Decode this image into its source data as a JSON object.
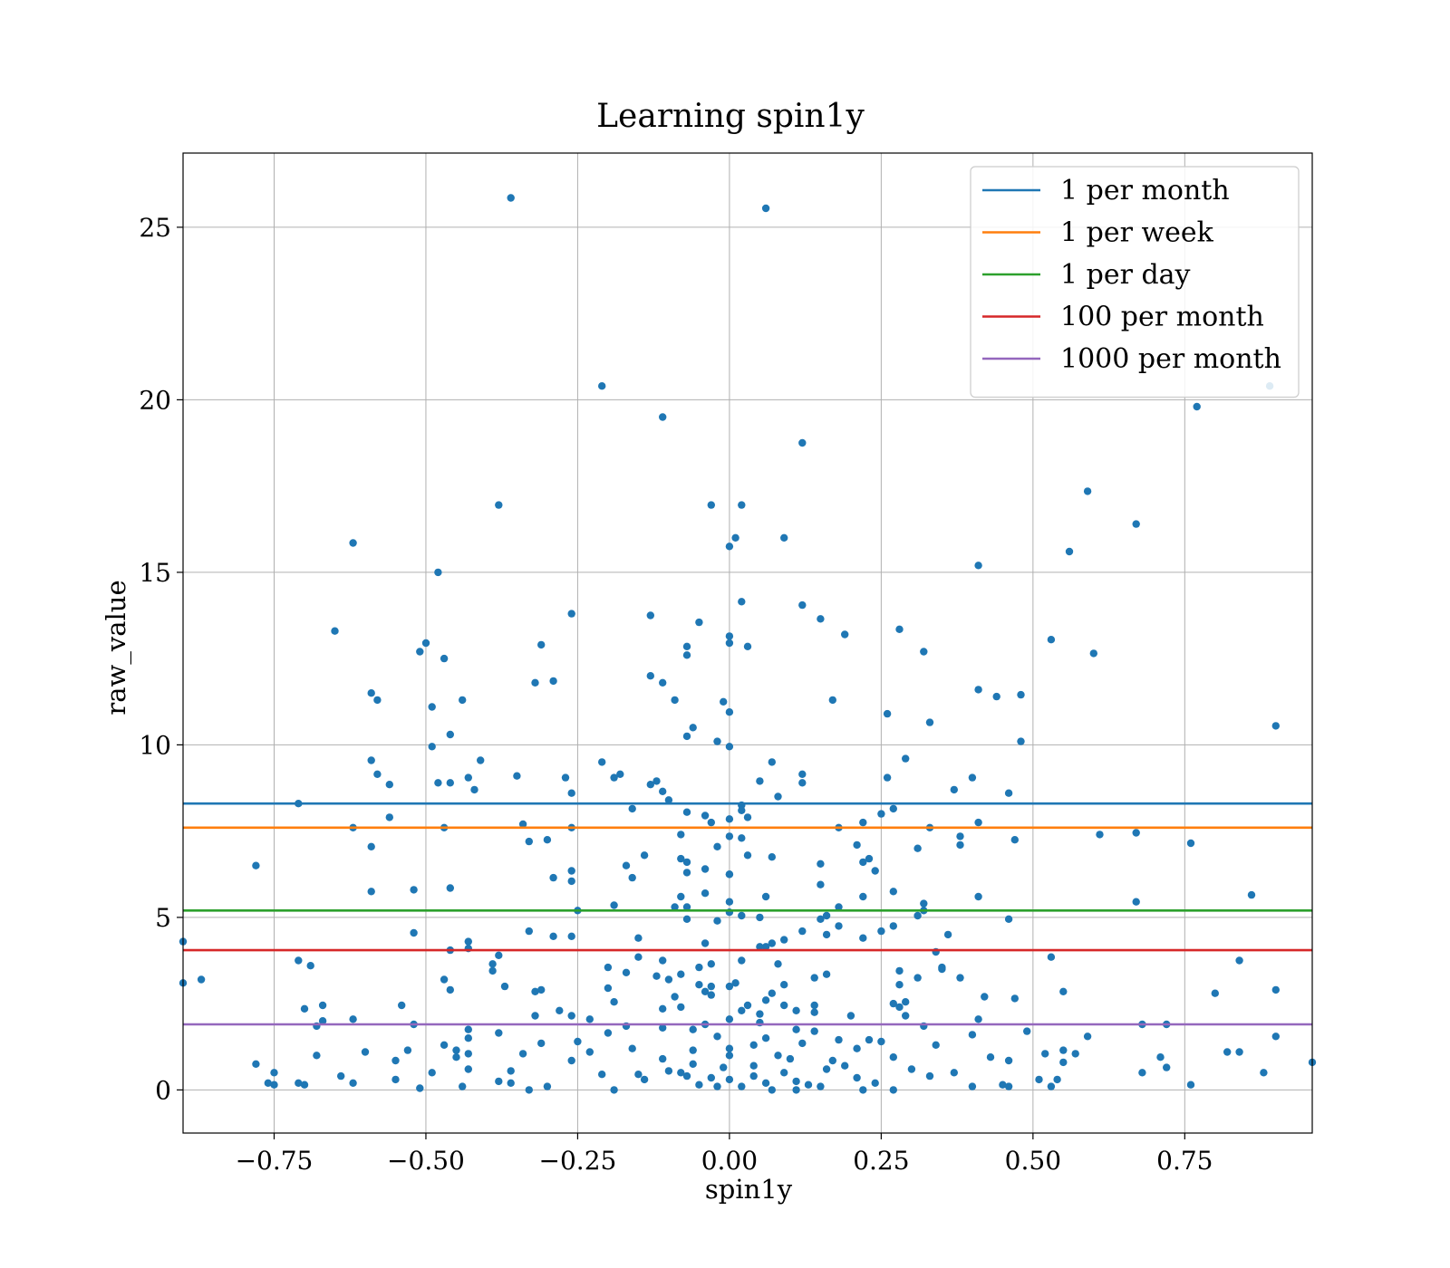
{
  "chart_data": {
    "type": "scatter",
    "title": "Learning spin1y",
    "xlabel": "spin1y",
    "ylabel": "raw_value",
    "xlim": [
      -0.9,
      0.96
    ],
    "ylim": [
      -1.25,
      27.15
    ],
    "x_ticks": [
      -0.75,
      -0.5,
      -0.25,
      0.0,
      0.25,
      0.5,
      0.75
    ],
    "x_tick_labels": [
      "−0.75",
      "−0.50",
      "−0.25",
      "0.00",
      "0.25",
      "0.50",
      "0.75"
    ],
    "y_ticks": [
      0,
      5,
      10,
      15,
      20,
      25
    ],
    "y_tick_labels": [
      "0",
      "5",
      "10",
      "15",
      "20",
      "25"
    ],
    "grid": true,
    "legend_position": "top-right",
    "point_color": "#1f77b4",
    "thresholds": [
      {
        "name": "1 per month",
        "value": 8.3,
        "color": "#1f77b4"
      },
      {
        "name": "1 per week",
        "value": 7.6,
        "color": "#ff7f0e"
      },
      {
        "name": "1 per day",
        "value": 5.2,
        "color": "#2ca02c"
      },
      {
        "name": "100 per month",
        "value": 4.05,
        "color": "#d62728"
      },
      {
        "name": "1000 per month",
        "value": 1.9,
        "color": "#9467bd"
      }
    ],
    "points": [
      [
        -0.36,
        25.85
      ],
      [
        0.06,
        25.55
      ],
      [
        -0.21,
        20.4
      ],
      [
        -0.11,
        19.5
      ],
      [
        0.12,
        18.75
      ],
      [
        0.77,
        19.8
      ],
      [
        0.89,
        20.4
      ],
      [
        -0.38,
        16.95
      ],
      [
        -0.03,
        16.95
      ],
      [
        0.02,
        16.95
      ],
      [
        0.59,
        17.35
      ],
      [
        0.67,
        16.4
      ],
      [
        -0.62,
        15.85
      ],
      [
        0.01,
        16.0
      ],
      [
        0.09,
        16.0
      ],
      [
        0.0,
        15.75
      ],
      [
        0.56,
        15.6
      ],
      [
        -0.48,
        15.0
      ],
      [
        0.41,
        15.2
      ],
      [
        0.02,
        14.15
      ],
      [
        0.12,
        14.05
      ],
      [
        -0.26,
        13.8
      ],
      [
        -0.13,
        13.75
      ],
      [
        0.15,
        13.65
      ],
      [
        -0.05,
        13.55
      ],
      [
        -0.65,
        13.3
      ],
      [
        0.28,
        13.35
      ],
      [
        0.19,
        13.2
      ],
      [
        0.0,
        13.15
      ],
      [
        0.0,
        12.95
      ],
      [
        0.53,
        13.05
      ],
      [
        -0.5,
        12.95
      ],
      [
        -0.31,
        12.9
      ],
      [
        -0.07,
        12.85
      ],
      [
        0.03,
        12.85
      ],
      [
        -0.51,
        12.7
      ],
      [
        -0.47,
        12.5
      ],
      [
        -0.07,
        12.6
      ],
      [
        0.32,
        12.7
      ],
      [
        0.6,
        12.65
      ],
      [
        -0.13,
        12.0
      ],
      [
        -0.29,
        11.85
      ],
      [
        -0.32,
        11.8
      ],
      [
        -0.11,
        11.8
      ],
      [
        0.41,
        11.6
      ],
      [
        -0.59,
        11.5
      ],
      [
        -0.58,
        11.3
      ],
      [
        -0.44,
        11.3
      ],
      [
        -0.09,
        11.3
      ],
      [
        -0.01,
        11.25
      ],
      [
        0.17,
        11.3
      ],
      [
        0.44,
        11.4
      ],
      [
        0.48,
        11.45
      ],
      [
        -0.49,
        11.1
      ],
      [
        0.0,
        10.95
      ],
      [
        0.26,
        10.9
      ],
      [
        0.33,
        10.65
      ],
      [
        -0.06,
        10.5
      ],
      [
        0.9,
        10.55
      ],
      [
        -0.07,
        10.25
      ],
      [
        -0.46,
        10.3
      ],
      [
        -0.02,
        10.1
      ],
      [
        0.48,
        10.1
      ],
      [
        -0.49,
        9.95
      ],
      [
        0.0,
        9.95
      ],
      [
        0.29,
        9.6
      ],
      [
        -0.59,
        9.55
      ],
      [
        -0.41,
        9.55
      ],
      [
        0.07,
        9.5
      ],
      [
        -0.21,
        9.5
      ],
      [
        -0.58,
        9.15
      ],
      [
        -0.35,
        9.1
      ],
      [
        -0.18,
        9.15
      ],
      [
        -0.19,
        9.05
      ],
      [
        0.12,
        9.15
      ],
      [
        -0.43,
        9.05
      ],
      [
        -0.27,
        9.05
      ],
      [
        -0.12,
        8.95
      ],
      [
        0.05,
        8.95
      ],
      [
        0.26,
        9.05
      ],
      [
        0.4,
        9.05
      ],
      [
        -0.56,
        8.85
      ],
      [
        -0.48,
        8.9
      ],
      [
        -0.46,
        8.9
      ],
      [
        -0.13,
        8.85
      ],
      [
        0.12,
        8.9
      ],
      [
        -0.42,
        8.7
      ],
      [
        -0.26,
        8.6
      ],
      [
        -0.11,
        8.65
      ],
      [
        0.37,
        8.7
      ],
      [
        0.46,
        8.6
      ],
      [
        0.08,
        8.5
      ],
      [
        -0.1,
        8.4
      ],
      [
        -0.71,
        8.3
      ],
      [
        0.02,
        8.25
      ],
      [
        -0.16,
        8.15
      ],
      [
        0.02,
        8.1
      ],
      [
        0.27,
        8.15
      ],
      [
        -0.07,
        8.05
      ],
      [
        -0.04,
        7.95
      ],
      [
        0.03,
        7.9
      ],
      [
        0.0,
        7.85
      ],
      [
        0.25,
        8.0
      ],
      [
        -0.03,
        7.75
      ],
      [
        0.22,
        7.75
      ],
      [
        0.41,
        7.75
      ],
      [
        -0.56,
        7.9
      ],
      [
        -0.62,
        7.6
      ],
      [
        -0.47,
        7.6
      ],
      [
        -0.26,
        7.6
      ],
      [
        -0.34,
        7.7
      ],
      [
        0.18,
        7.6
      ],
      [
        0.33,
        7.6
      ],
      [
        -0.08,
        7.4
      ],
      [
        0.02,
        7.3
      ],
      [
        0.0,
        7.35
      ],
      [
        0.38,
        7.35
      ],
      [
        0.61,
        7.4
      ],
      [
        -0.33,
        7.2
      ],
      [
        -0.3,
        7.25
      ],
      [
        0.47,
        7.25
      ],
      [
        0.67,
        7.45
      ],
      [
        0.76,
        7.15
      ],
      [
        -0.59,
        7.05
      ],
      [
        -0.02,
        7.05
      ],
      [
        0.21,
        7.1
      ],
      [
        0.31,
        7.0
      ],
      [
        0.38,
        7.1
      ],
      [
        -0.14,
        6.8
      ],
      [
        0.03,
        6.8
      ],
      [
        0.07,
        6.75
      ],
      [
        -0.08,
        6.7
      ],
      [
        0.23,
        6.7
      ],
      [
        -0.07,
        6.6
      ],
      [
        -0.17,
        6.5
      ],
      [
        0.15,
        6.55
      ],
      [
        -0.78,
        6.5
      ],
      [
        -0.04,
        6.4
      ],
      [
        0.24,
        6.35
      ],
      [
        -0.26,
        6.35
      ],
      [
        0.22,
        6.6
      ],
      [
        -0.07,
        6.3
      ],
      [
        0.0,
        6.25
      ],
      [
        0.0,
        6.25
      ],
      [
        -0.29,
        6.15
      ],
      [
        -0.16,
        6.15
      ],
      [
        -0.26,
        6.05
      ],
      [
        0.15,
        5.95
      ],
      [
        0.27,
        5.75
      ],
      [
        -0.59,
        5.75
      ],
      [
        -0.52,
        5.8
      ],
      [
        -0.46,
        5.85
      ],
      [
        -0.04,
        5.7
      ],
      [
        0.06,
        5.6
      ],
      [
        0.22,
        5.6
      ],
      [
        -0.08,
        5.6
      ],
      [
        0.41,
        5.6
      ],
      [
        0.86,
        5.65
      ],
      [
        0.0,
        5.45
      ],
      [
        -0.19,
        5.35
      ],
      [
        -0.09,
        5.3
      ],
      [
        -0.07,
        5.3
      ],
      [
        0.18,
        5.3
      ],
      [
        0.32,
        5.4
      ],
      [
        0.67,
        5.45
      ],
      [
        -0.25,
        5.2
      ],
      [
        0.0,
        5.15
      ],
      [
        0.32,
        5.2
      ],
      [
        0.16,
        5.05
      ],
      [
        0.31,
        5.05
      ],
      [
        0.02,
        5.05
      ],
      [
        0.05,
        5.0
      ],
      [
        -0.07,
        4.95
      ],
      [
        0.46,
        4.95
      ],
      [
        0.15,
        4.95
      ],
      [
        -0.02,
        4.9
      ],
      [
        0.27,
        4.75
      ],
      [
        0.18,
        4.75
      ],
      [
        0.16,
        4.5
      ],
      [
        -0.52,
        4.55
      ],
      [
        -0.33,
        4.6
      ],
      [
        0.12,
        4.6
      ],
      [
        0.25,
        4.6
      ],
      [
        0.36,
        4.5
      ],
      [
        -0.29,
        4.45
      ],
      [
        -0.26,
        4.45
      ],
      [
        -0.15,
        4.4
      ],
      [
        0.22,
        4.4
      ],
      [
        0.09,
        4.35
      ],
      [
        -0.43,
        4.3
      ],
      [
        -0.9,
        4.3
      ],
      [
        -0.04,
        4.25
      ],
      [
        0.07,
        4.25
      ],
      [
        0.06,
        4.15
      ],
      [
        0.05,
        4.15
      ],
      [
        -0.46,
        4.05
      ],
      [
        -0.43,
        4.1
      ],
      [
        0.34,
        4.0
      ],
      [
        -0.38,
        3.9
      ],
      [
        -0.15,
        3.85
      ],
      [
        0.53,
        3.85
      ],
      [
        -0.71,
        3.75
      ],
      [
        -0.11,
        3.75
      ],
      [
        0.02,
        3.75
      ],
      [
        0.84,
        3.75
      ],
      [
        -0.39,
        3.65
      ],
      [
        -0.69,
        3.6
      ],
      [
        -0.03,
        3.65
      ],
      [
        0.08,
        3.65
      ],
      [
        -0.2,
        3.55
      ],
      [
        -0.05,
        3.55
      ],
      [
        0.35,
        3.5
      ],
      [
        0.28,
        3.45
      ],
      [
        -0.39,
        3.45
      ],
      [
        -0.17,
        3.4
      ],
      [
        -0.08,
        3.35
      ],
      [
        0.16,
        3.35
      ],
      [
        0.35,
        3.55
      ],
      [
        -0.12,
        3.3
      ],
      [
        0.14,
        3.25
      ],
      [
        0.31,
        3.25
      ],
      [
        0.38,
        3.25
      ],
      [
        -0.87,
        3.2
      ],
      [
        -0.1,
        3.2
      ],
      [
        -0.47,
        3.2
      ],
      [
        -0.9,
        3.1
      ],
      [
        0.01,
        3.1
      ],
      [
        0.28,
        3.05
      ],
      [
        -0.05,
        3.05
      ],
      [
        0.09,
        3.05
      ],
      [
        -0.03,
        3.0
      ],
      [
        0.0,
        3.0
      ],
      [
        -0.37,
        3.0
      ],
      [
        -0.2,
        2.95
      ],
      [
        -0.31,
        2.9
      ],
      [
        -0.32,
        2.85
      ],
      [
        -0.04,
        2.85
      ],
      [
        0.55,
        2.85
      ],
      [
        0.9,
        2.9
      ],
      [
        -0.46,
        2.9
      ],
      [
        -0.03,
        2.75
      ],
      [
        0.8,
        2.8
      ],
      [
        0.07,
        2.8
      ],
      [
        -0.09,
        2.7
      ],
      [
        0.42,
        2.7
      ],
      [
        0.47,
        2.65
      ],
      [
        0.06,
        2.6
      ],
      [
        -0.19,
        2.55
      ],
      [
        0.29,
        2.55
      ],
      [
        0.27,
        2.5
      ],
      [
        0.03,
        2.45
      ],
      [
        0.09,
        2.45
      ],
      [
        0.14,
        2.45
      ],
      [
        -0.67,
        2.45
      ],
      [
        0.28,
        2.4
      ],
      [
        -0.54,
        2.45
      ],
      [
        -0.7,
        2.35
      ],
      [
        -0.11,
        2.35
      ],
      [
        -0.08,
        2.4
      ],
      [
        0.02,
        2.3
      ],
      [
        0.11,
        2.3
      ],
      [
        -0.28,
        2.3
      ],
      [
        0.14,
        2.25
      ],
      [
        0.05,
        2.2
      ],
      [
        -0.32,
        2.15
      ],
      [
        -0.26,
        2.15
      ],
      [
        0.2,
        2.15
      ],
      [
        0.29,
        2.15
      ],
      [
        -0.23,
        2.05
      ],
      [
        -0.62,
        2.05
      ],
      [
        -0.67,
        2.0
      ],
      [
        0.0,
        2.05
      ],
      [
        0.05,
        1.95
      ],
      [
        0.41,
        2.05
      ],
      [
        0.72,
        1.9
      ],
      [
        -0.52,
        1.9
      ],
      [
        -0.68,
        1.85
      ],
      [
        -0.04,
        1.9
      ],
      [
        -0.17,
        1.85
      ],
      [
        0.32,
        1.85
      ],
      [
        0.68,
        1.9
      ],
      [
        -0.43,
        1.75
      ],
      [
        -0.11,
        1.8
      ],
      [
        -0.06,
        1.75
      ],
      [
        0.14,
        1.7
      ],
      [
        0.49,
        1.7
      ],
      [
        0.11,
        1.75
      ],
      [
        -0.38,
        1.65
      ],
      [
        -0.2,
        1.65
      ],
      [
        0.4,
        1.6
      ],
      [
        0.59,
        1.55
      ],
      [
        0.9,
        1.55
      ],
      [
        -0.43,
        1.5
      ],
      [
        -0.02,
        1.55
      ],
      [
        0.06,
        1.5
      ],
      [
        0.18,
        1.45
      ],
      [
        0.23,
        1.45
      ],
      [
        0.25,
        1.4
      ],
      [
        -0.25,
        1.4
      ],
      [
        -0.31,
        1.35
      ],
      [
        -0.47,
        1.3
      ],
      [
        0.04,
        1.3
      ],
      [
        0.12,
        1.35
      ],
      [
        0.34,
        1.3
      ],
      [
        -0.16,
        1.2
      ],
      [
        -0.06,
        1.15
      ],
      [
        0.0,
        1.2
      ],
      [
        0.21,
        1.2
      ],
      [
        0.55,
        1.15
      ],
      [
        -0.53,
        1.15
      ],
      [
        -0.45,
        1.15
      ],
      [
        -0.23,
        1.1
      ],
      [
        0.52,
        1.05
      ],
      [
        0.57,
        1.05
      ],
      [
        0.82,
        1.1
      ],
      [
        0.84,
        1.1
      ],
      [
        -0.6,
        1.1
      ],
      [
        -0.43,
        1.05
      ],
      [
        -0.34,
        1.05
      ],
      [
        0.0,
        1.0
      ],
      [
        0.08,
        1.0
      ],
      [
        0.27,
        0.95
      ],
      [
        -0.68,
        1.0
      ],
      [
        -0.45,
        0.95
      ],
      [
        0.43,
        0.95
      ],
      [
        0.71,
        0.95
      ],
      [
        -0.11,
        0.9
      ],
      [
        0.1,
        0.9
      ],
      [
        -0.55,
        0.85
      ],
      [
        -0.26,
        0.85
      ],
      [
        0.17,
        0.85
      ],
      [
        0.46,
        0.85
      ],
      [
        0.55,
        0.8
      ],
      [
        0.96,
        0.8
      ],
      [
        -0.78,
        0.75
      ],
      [
        -0.06,
        0.75
      ],
      [
        0.04,
        0.7
      ],
      [
        0.19,
        0.7
      ],
      [
        0.72,
        0.65
      ],
      [
        -0.43,
        0.6
      ],
      [
        -0.36,
        0.55
      ],
      [
        -0.08,
        0.5
      ],
      [
        0.09,
        0.5
      ],
      [
        0.37,
        0.5
      ],
      [
        0.68,
        0.5
      ],
      [
        0.88,
        0.5
      ],
      [
        -0.75,
        0.5
      ],
      [
        -0.49,
        0.5
      ],
      [
        -0.21,
        0.45
      ],
      [
        -0.07,
        0.4
      ],
      [
        0.04,
        0.4
      ],
      [
        0.33,
        0.4
      ],
      [
        -0.64,
        0.4
      ],
      [
        -0.03,
        0.35
      ],
      [
        0.21,
        0.35
      ],
      [
        0.51,
        0.3
      ],
      [
        0.54,
        0.3
      ],
      [
        -0.55,
        0.3
      ],
      [
        -0.14,
        0.3
      ],
      [
        0.11,
        0.25
      ],
      [
        -0.38,
        0.25
      ],
      [
        -0.36,
        0.2
      ],
      [
        -0.62,
        0.2
      ],
      [
        -0.71,
        0.2
      ],
      [
        -0.76,
        0.2
      ],
      [
        -0.75,
        0.15
      ],
      [
        -0.7,
        0.15
      ],
      [
        -0.05,
        0.15
      ],
      [
        0.06,
        0.2
      ],
      [
        0.24,
        0.2
      ],
      [
        0.45,
        0.15
      ],
      [
        0.76,
        0.15
      ],
      [
        -0.44,
        0.1
      ],
      [
        -0.3,
        0.1
      ],
      [
        -0.02,
        0.1
      ],
      [
        0.02,
        0.1
      ],
      [
        0.15,
        0.1
      ],
      [
        0.4,
        0.1
      ],
      [
        0.46,
        0.1
      ],
      [
        0.53,
        0.1
      ],
      [
        -0.51,
        0.05
      ],
      [
        -0.33,
        0.0
      ],
      [
        -0.19,
        0.0
      ],
      [
        0.07,
        0.0
      ],
      [
        0.11,
        0.0
      ],
      [
        0.22,
        0.0
      ],
      [
        0.27,
        0.0
      ],
      [
        -0.1,
        0.55
      ],
      [
        0.16,
        0.6
      ],
      [
        -0.15,
        0.45
      ],
      [
        0.3,
        0.6
      ],
      [
        -0.01,
        0.65
      ],
      [
        0.13,
        0.15
      ],
      [
        0.0,
        0.3
      ]
    ]
  }
}
